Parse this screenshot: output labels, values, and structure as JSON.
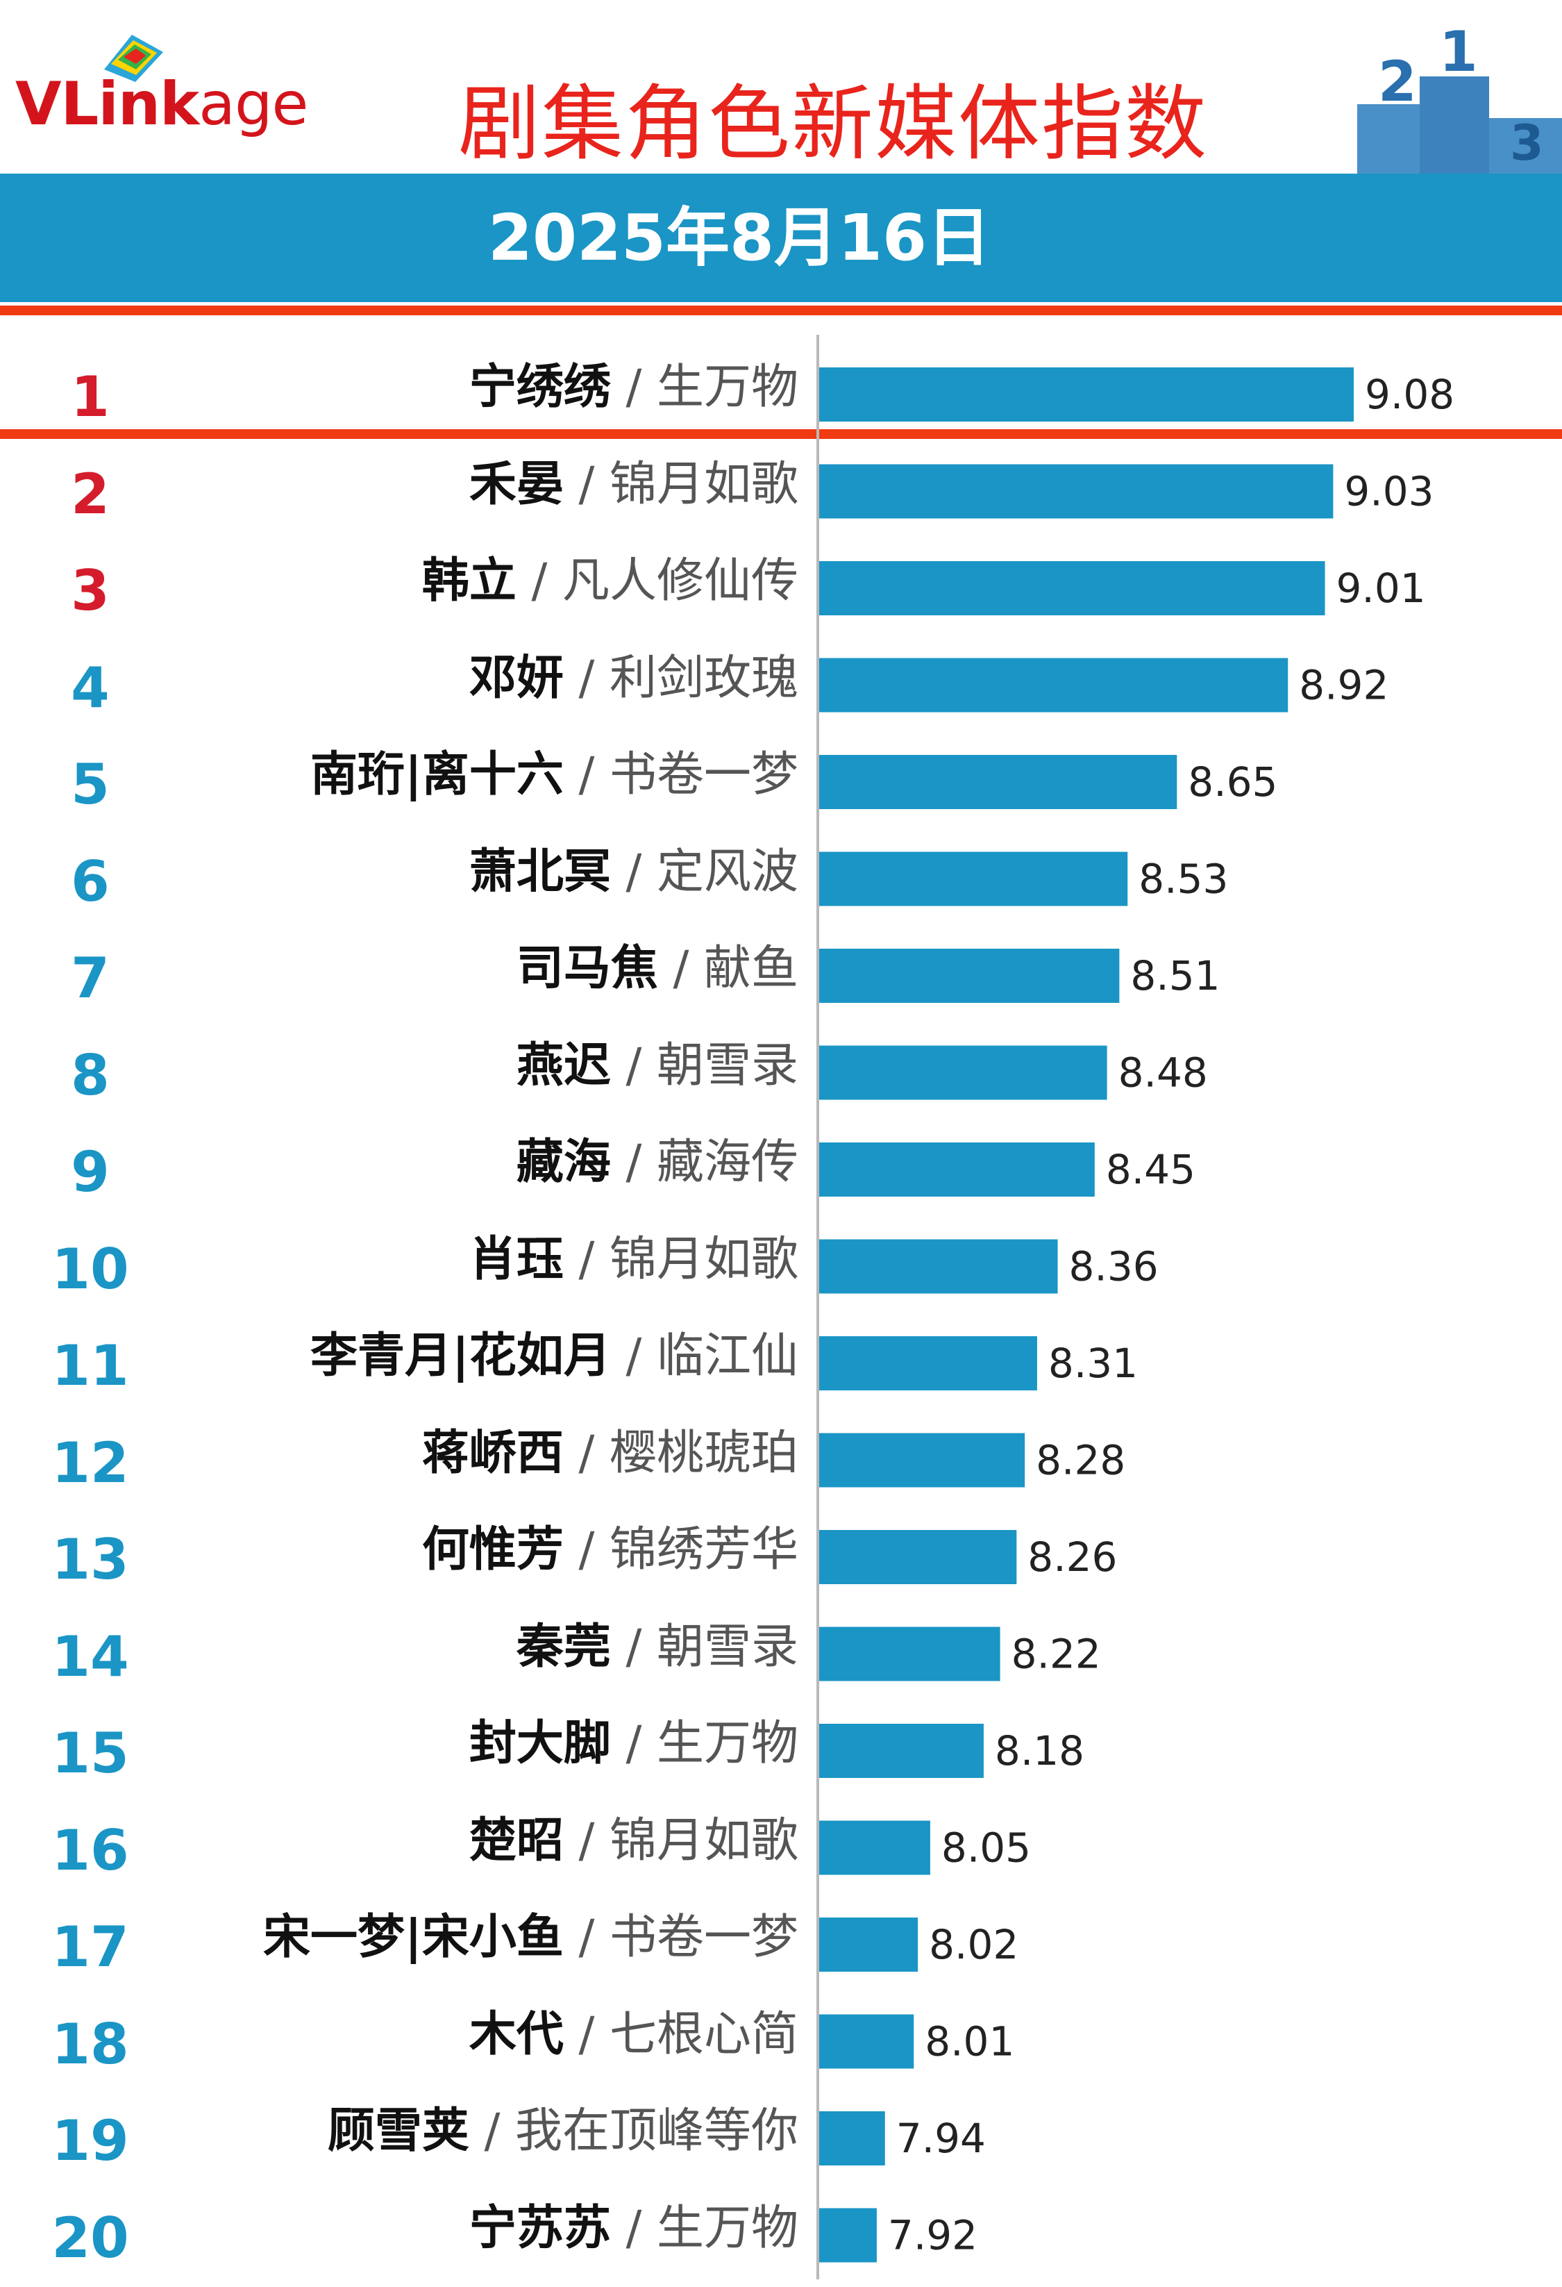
{
  "header": {
    "logo_text_v": "VLink",
    "logo_text_age": "age",
    "title": "剧集角色新媒体指数",
    "date": "2025年8月16日",
    "podium_numbers": [
      "2",
      "1",
      "3"
    ]
  },
  "colors": {
    "bar": "#1a95c5",
    "top3_rank": "#d41c2c",
    "rank": "#1a95c5",
    "accent_line": "#f03a12",
    "title": "#e8241c"
  },
  "chart_data": {
    "type": "bar",
    "orientation": "horizontal",
    "separator": " / ",
    "rows": [
      {
        "rank": "1",
        "name": "宁绣绣",
        "show": "生万物",
        "value": 9.08,
        "value_label": "9.08"
      },
      {
        "rank": "2",
        "name": "禾晏",
        "show": "锦月如歌",
        "value": 9.03,
        "value_label": "9.03"
      },
      {
        "rank": "3",
        "name": "韩立",
        "show": "凡人修仙传",
        "value": 9.01,
        "value_label": "9.01"
      },
      {
        "rank": "4",
        "name": "邓妍",
        "show": "利剑玫瑰",
        "value": 8.92,
        "value_label": "8.92"
      },
      {
        "rank": "5",
        "name": "南珩|离十六",
        "show": "书卷一梦",
        "value": 8.65,
        "value_label": "8.65"
      },
      {
        "rank": "6",
        "name": "萧北冥",
        "show": "定风波",
        "value": 8.53,
        "value_label": "8.53"
      },
      {
        "rank": "7",
        "name": "司马焦",
        "show": "献鱼",
        "value": 8.51,
        "value_label": "8.51"
      },
      {
        "rank": "8",
        "name": "燕迟",
        "show": "朝雪录",
        "value": 8.48,
        "value_label": "8.48"
      },
      {
        "rank": "9",
        "name": "藏海",
        "show": "藏海传",
        "value": 8.45,
        "value_label": "8.45"
      },
      {
        "rank": "10",
        "name": "肖珏",
        "show": "锦月如歌",
        "value": 8.36,
        "value_label": "8.36"
      },
      {
        "rank": "11",
        "name": "李青月|花如月",
        "show": "临江仙",
        "value": 8.31,
        "value_label": "8.31"
      },
      {
        "rank": "12",
        "name": "蒋峤西",
        "show": "樱桃琥珀",
        "value": 8.28,
        "value_label": "8.28"
      },
      {
        "rank": "13",
        "name": "何惟芳",
        "show": "锦绣芳华",
        "value": 8.26,
        "value_label": "8.26"
      },
      {
        "rank": "14",
        "name": "秦莞",
        "show": "朝雪录",
        "value": 8.22,
        "value_label": "8.22"
      },
      {
        "rank": "15",
        "name": "封大脚",
        "show": "生万物",
        "value": 8.18,
        "value_label": "8.18"
      },
      {
        "rank": "16",
        "name": "楚昭",
        "show": "锦月如歌",
        "value": 8.05,
        "value_label": "8.05"
      },
      {
        "rank": "17",
        "name": "宋一梦|宋小鱼",
        "show": "书卷一梦",
        "value": 8.02,
        "value_label": "8.02"
      },
      {
        "rank": "18",
        "name": "木代",
        "show": "七根心简",
        "value": 8.01,
        "value_label": "8.01"
      },
      {
        "rank": "19",
        "name": "顾雪荚",
        "show": "我在顶峰等你",
        "value": 7.94,
        "value_label": "7.94"
      },
      {
        "rank": "20",
        "name": "宁苏苏",
        "show": "生万物",
        "value": 7.92,
        "value_label": "7.92"
      }
    ],
    "xlim": [
      7.78,
      9.08
    ],
    "grid": false,
    "legend": "none"
  }
}
